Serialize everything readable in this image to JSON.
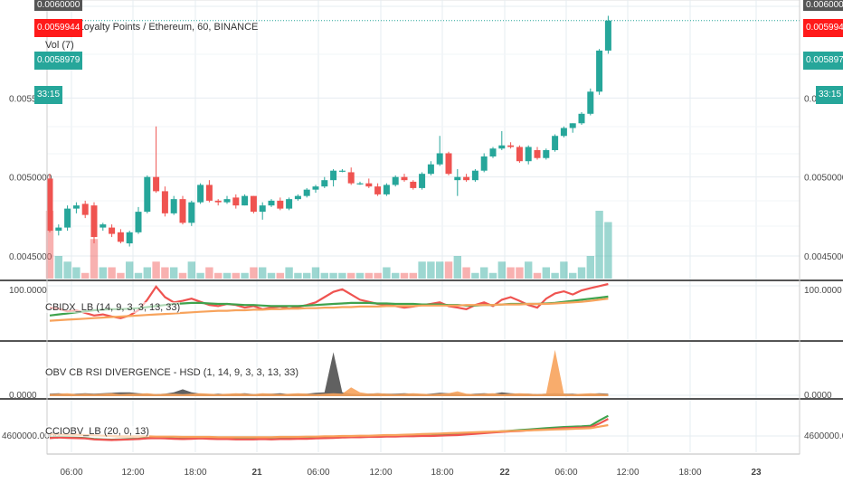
{
  "header": {
    "symbol_line": "Moeda Loyalty Points / Ethereum, 60, BINANCE",
    "vol_line": "Vol (7)"
  },
  "price_tags": {
    "top_cut": "0.0060000",
    "last": "0.0059944",
    "prev": "0.0058979",
    "timer": "33:15"
  },
  "panes": {
    "indicator1_label": "CBIDX_LB (14, 9, 3, 3, 13, 33)",
    "indicator2_label": "OBV CB RSI DIVERGENCE - HSD (1, 14, 9, 3, 3, 13, 33)",
    "indicator3_label": "CCIOBV_LB (20, 0, 13)"
  },
  "colors": {
    "up": "#26a69a",
    "down": "#ef5350",
    "price_line": "#26a69a",
    "tag_red": "#ff1a1a",
    "tag_teal": "#26a69a",
    "orange": "#f7a35c",
    "green": "#3fa34d",
    "dark": "#505050",
    "grid": "#e6ecf1",
    "separator": "#555555"
  },
  "chart_data": [
    {
      "type": "candlestick",
      "title": "Moeda Loyalty Points / Ethereum, 60, BINANCE",
      "ylim": [
        0.00438,
        0.00612
      ],
      "yticks": [
        "0.0045000",
        "0.0050000",
        "0.0055000"
      ],
      "xticks": [
        "06:00",
        "12:00",
        "18:00",
        "21",
        "06:00",
        "12:00",
        "18:00",
        "22",
        "06:00",
        "12:00",
        "18:00",
        "23"
      ],
      "candles": [
        [
          0.00499,
          0.00502,
          0.00465,
          0.00466
        ],
        [
          0.00466,
          0.0047,
          0.00463,
          0.00468
        ],
        [
          0.00468,
          0.00482,
          0.00466,
          0.0048
        ],
        [
          0.0048,
          0.00484,
          0.00477,
          0.00482
        ],
        [
          0.00483,
          0.00485,
          0.00474,
          0.00476
        ],
        [
          0.00482,
          0.00484,
          0.00458,
          0.00462
        ],
        [
          0.00468,
          0.00471,
          0.00466,
          0.0047
        ],
        [
          0.00468,
          0.0047,
          0.00462,
          0.00464
        ],
        [
          0.00465,
          0.00467,
          0.00458,
          0.00459
        ],
        [
          0.00458,
          0.00466,
          0.00456,
          0.00465
        ],
        [
          0.00465,
          0.00481,
          0.00464,
          0.00478
        ],
        [
          0.00478,
          0.00501,
          0.00477,
          0.005
        ],
        [
          0.005,
          0.00532,
          0.0049,
          0.00491
        ],
        [
          0.00491,
          0.00494,
          0.00475,
          0.00477
        ],
        [
          0.00477,
          0.00488,
          0.00476,
          0.00486
        ],
        [
          0.00486,
          0.00488,
          0.0047,
          0.00471
        ],
        [
          0.00471,
          0.00485,
          0.00469,
          0.00484
        ],
        [
          0.00484,
          0.00496,
          0.00483,
          0.00495
        ],
        [
          0.00495,
          0.00498,
          0.00484,
          0.00485
        ],
        [
          0.00485,
          0.00486,
          0.00482,
          0.00484
        ],
        [
          0.00484,
          0.00488,
          0.00483,
          0.00486
        ],
        [
          0.00487,
          0.00489,
          0.0048,
          0.00482
        ],
        [
          0.00482,
          0.00489,
          0.00482,
          0.00488
        ],
        [
          0.00488,
          0.00488,
          0.00477,
          0.00478
        ],
        [
          0.00478,
          0.00484,
          0.00473,
          0.00482
        ],
        [
          0.00482,
          0.00486,
          0.00481,
          0.00485
        ],
        [
          0.00485,
          0.00487,
          0.00479,
          0.0048
        ],
        [
          0.0048,
          0.00487,
          0.00479,
          0.00486
        ],
        [
          0.00486,
          0.00489,
          0.00485,
          0.00488
        ],
        [
          0.00488,
          0.00493,
          0.00487,
          0.00492
        ],
        [
          0.00492,
          0.00495,
          0.0049,
          0.00494
        ],
        [
          0.00494,
          0.005,
          0.00493,
          0.00498
        ],
        [
          0.00498,
          0.00505,
          0.00494,
          0.00504
        ],
        [
          0.00504,
          0.00505,
          0.00503,
          0.00504
        ],
        [
          0.00503,
          0.00506,
          0.00495,
          0.00496
        ],
        [
          0.00496,
          0.00497,
          0.00495,
          0.00496
        ],
        [
          0.00496,
          0.00499,
          0.00493,
          0.00494
        ],
        [
          0.00494,
          0.00496,
          0.00488,
          0.00489
        ],
        [
          0.00489,
          0.00496,
          0.00488,
          0.00495
        ],
        [
          0.00495,
          0.00501,
          0.00494,
          0.005
        ],
        [
          0.005,
          0.00502,
          0.00497,
          0.00498
        ],
        [
          0.00497,
          0.00498,
          0.00492,
          0.00493
        ],
        [
          0.00493,
          0.00503,
          0.00492,
          0.00502
        ],
        [
          0.00502,
          0.0051,
          0.00501,
          0.00508
        ],
        [
          0.00508,
          0.00526,
          0.00507,
          0.00515
        ],
        [
          0.00515,
          0.00516,
          0.00501,
          0.00502
        ],
        [
          0.00498,
          0.00505,
          0.00488,
          0.005
        ],
        [
          0.005,
          0.00502,
          0.00497,
          0.00498
        ],
        [
          0.00498,
          0.00505,
          0.00497,
          0.00504
        ],
        [
          0.00504,
          0.00515,
          0.00503,
          0.00513
        ],
        [
          0.00513,
          0.00519,
          0.00512,
          0.00518
        ],
        [
          0.00518,
          0.00529,
          0.00517,
          0.0052
        ],
        [
          0.0052,
          0.00522,
          0.00518,
          0.00519
        ],
        [
          0.00519,
          0.0052,
          0.00509,
          0.0051
        ],
        [
          0.0051,
          0.0052,
          0.00508,
          0.00519
        ],
        [
          0.00517,
          0.00519,
          0.00511,
          0.00512
        ],
        [
          0.00512,
          0.00518,
          0.00511,
          0.00517
        ],
        [
          0.00517,
          0.00527,
          0.00516,
          0.00526
        ],
        [
          0.00526,
          0.00532,
          0.00525,
          0.00531
        ],
        [
          0.00531,
          0.00534,
          0.00528,
          0.00534
        ],
        [
          0.00534,
          0.00541,
          0.00533,
          0.0054
        ],
        [
          0.0054,
          0.00556,
          0.00539,
          0.00554
        ],
        [
          0.00554,
          0.00581,
          0.00552,
          0.0058
        ],
        [
          0.0058,
          0.00602,
          0.00578,
          0.00599
        ]
      ]
    },
    {
      "type": "bar",
      "title": "Vol (7)",
      "values": [
        12,
        4,
        3,
        2,
        1,
        7,
        2,
        2,
        1,
        3,
        1,
        2,
        3,
        2,
        2,
        1,
        3,
        1,
        2,
        1,
        1,
        1,
        1,
        2,
        2,
        1,
        1,
        2,
        1,
        1,
        2,
        1,
        1,
        1,
        1,
        1,
        1,
        1,
        2,
        1,
        1,
        1,
        3,
        3,
        3,
        3,
        4,
        2,
        1,
        2,
        1,
        3,
        2,
        2,
        3,
        1,
        2,
        1,
        3,
        1,
        2,
        4,
        12,
        10
      ],
      "colors_up_down": "price-direction"
    },
    {
      "type": "line",
      "title": "CBIDX_LB (14, 9, 3, 3, 13, 33)",
      "ylim": [
        0,
        100
      ],
      "yticks": [
        "100.0000"
      ],
      "series": [
        {
          "color": "#ef5350",
          "values": [
            55,
            53,
            48,
            50,
            45,
            40,
            42,
            38,
            35,
            40,
            50,
            70,
            95,
            75,
            65,
            68,
            72,
            66,
            60,
            58,
            62,
            60,
            55,
            58,
            52,
            55,
            57,
            53,
            56,
            60,
            65,
            75,
            85,
            90,
            80,
            70,
            66,
            62,
            60,
            58,
            55,
            57,
            60,
            62,
            65,
            58,
            55,
            52,
            60,
            65,
            58,
            70,
            75,
            68,
            60,
            55,
            72,
            82,
            86,
            80,
            88,
            92,
            96,
            100
          ]
        },
        {
          "color": "#3fa34d",
          "values": [
            40,
            42,
            44,
            46,
            48,
            50,
            51,
            52,
            52,
            53,
            54,
            56,
            58,
            60,
            62,
            63,
            64,
            64,
            63,
            62,
            62,
            61,
            60,
            60,
            59,
            58,
            58,
            58,
            58,
            59,
            60,
            61,
            62,
            63,
            64,
            64,
            64,
            63,
            63,
            62,
            62,
            62,
            61,
            61,
            61,
            60,
            60,
            59,
            59,
            60,
            60,
            61,
            62,
            62,
            62,
            62,
            63,
            64,
            66,
            68,
            70,
            72,
            74,
            76
          ]
        },
        {
          "color": "#f7a35c",
          "values": [
            30,
            31,
            32,
            33,
            34,
            35,
            36,
            37,
            38,
            39,
            40,
            41,
            42,
            43,
            44,
            45,
            46,
            47,
            48,
            49,
            49,
            50,
            50,
            51,
            51,
            52,
            52,
            53,
            53,
            54,
            54,
            55,
            55,
            56,
            56,
            57,
            57,
            57,
            58,
            58,
            58,
            58,
            59,
            59,
            59,
            59,
            59,
            60,
            60,
            60,
            60,
            61,
            61,
            61,
            62,
            62,
            62,
            63,
            64,
            65,
            66,
            68,
            70,
            72
          ]
        }
      ]
    },
    {
      "type": "area",
      "title": "OBV CB RSI DIVERGENCE - HSD (1, 14, 9, 3, 3, 13, 33)",
      "ylim": [
        0,
        100
      ],
      "yticks": [
        "0.0000"
      ],
      "series": [
        {
          "color": "#505050",
          "values": [
            5,
            6,
            4,
            5,
            6,
            5,
            6,
            7,
            8,
            8,
            6,
            5,
            4,
            5,
            8,
            14,
            8,
            5,
            4,
            5,
            4,
            5,
            6,
            4,
            5,
            5,
            6,
            4,
            5,
            5,
            7,
            8,
            90,
            8,
            5,
            4,
            5,
            6,
            5,
            5,
            6,
            5,
            4,
            5,
            7,
            6,
            5,
            4,
            5,
            6,
            5,
            8,
            6,
            5,
            5,
            4,
            5,
            6,
            5,
            5,
            4,
            5,
            6,
            5
          ]
        },
        {
          "color": "#f7a35c",
          "values": [
            4,
            5,
            6,
            4,
            5,
            4,
            5,
            6,
            4,
            5,
            5,
            6,
            4,
            5,
            5,
            4,
            5,
            6,
            5,
            4,
            5,
            6,
            5,
            4,
            6,
            5,
            4,
            5,
            6,
            5,
            4,
            5,
            6,
            5,
            18,
            8,
            5,
            6,
            5,
            4,
            5,
            6,
            5,
            4,
            5,
            6,
            10,
            5,
            4,
            5,
            6,
            4,
            5,
            6,
            5,
            4,
            5,
            95,
            5,
            4,
            5,
            6,
            5,
            4
          ]
        }
      ]
    },
    {
      "type": "line",
      "title": "CCIOBV_LB (20, 0, 13)",
      "yticks": [
        "4600000.0000"
      ],
      "ylim": [
        -20,
        120
      ],
      "series": [
        {
          "color": "#3fa34d",
          "values": [
            10,
            12,
            11,
            10,
            8,
            5,
            4,
            3,
            4,
            5,
            6,
            8,
            9,
            8,
            7,
            6,
            7,
            8,
            7,
            6,
            6,
            5,
            5,
            5,
            6,
            5,
            6,
            6,
            7,
            7,
            8,
            9,
            10,
            11,
            12,
            12,
            13,
            13,
            14,
            14,
            15,
            15,
            16,
            16,
            18,
            19,
            20,
            22,
            24,
            26,
            28,
            30,
            32,
            34,
            36,
            38,
            40,
            42,
            44,
            45,
            46,
            48,
            65,
            80
          ]
        },
        {
          "color": "#ef5350",
          "values": [
            8,
            10,
            9,
            8,
            7,
            4,
            3,
            2,
            3,
            4,
            5,
            7,
            8,
            7,
            6,
            5,
            6,
            7,
            6,
            5,
            5,
            4,
            4,
            4,
            5,
            4,
            5,
            5,
            6,
            6,
            7,
            8,
            9,
            10,
            11,
            11,
            12,
            12,
            13,
            13,
            14,
            14,
            15,
            15,
            16,
            17,
            18,
            20,
            22,
            24,
            26,
            28,
            30,
            31,
            33,
            35,
            36,
            38,
            40,
            41,
            42,
            43,
            55,
            70
          ]
        },
        {
          "color": "#f7a35c",
          "values": [
            20,
            20,
            19,
            19,
            18,
            17,
            16,
            15,
            14,
            14,
            14,
            14,
            13,
            13,
            13,
            12,
            12,
            12,
            12,
            11,
            11,
            11,
            11,
            11,
            11,
            11,
            12,
            12,
            12,
            13,
            13,
            14,
            14,
            15,
            15,
            16,
            16,
            17,
            18,
            18,
            19,
            20,
            21,
            22,
            23,
            24,
            25,
            26,
            27,
            28,
            29,
            30,
            31,
            32,
            33,
            34,
            35,
            36,
            37,
            38,
            39,
            40,
            45,
            50
          ]
        }
      ]
    }
  ]
}
